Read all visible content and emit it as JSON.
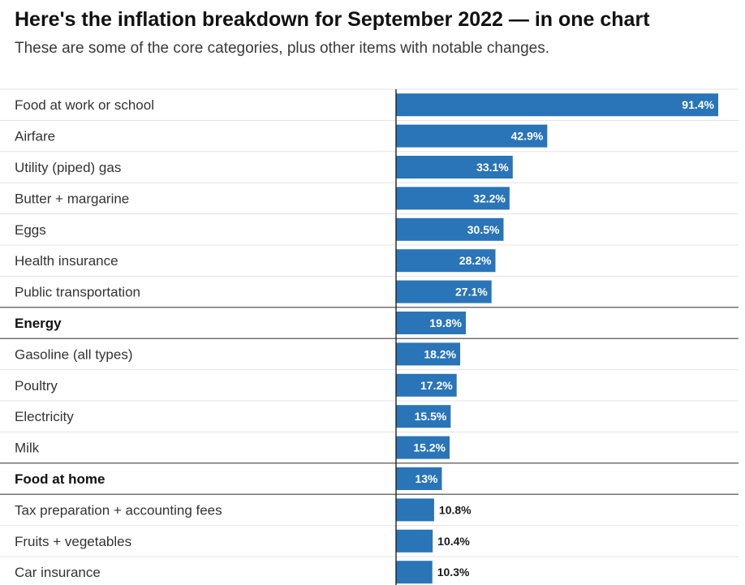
{
  "header": {
    "title": "Here's the inflation breakdown for September 2022 — in one chart",
    "subtitle": "These are some of the core categories, plus other items with notable changes."
  },
  "colors": {
    "bar": "#2a74b8",
    "value_inside": "#ffffff",
    "value_outside": "#1a1a1a",
    "divider_light": "#e3e3e3",
    "divider_strong": "#444444",
    "axis_line": "#222222"
  },
  "chart_data": {
    "type": "bar",
    "orientation": "horizontal",
    "categories": [
      "Food at work or school",
      "Airfare",
      "Utility (piped) gas",
      "Butter + margarine",
      "Eggs",
      "Health insurance",
      "Public transportation",
      "Energy",
      "Gasoline (all types)",
      "Poultry",
      "Electricity",
      "Milk",
      "Food at home",
      "Tax preparation + accounting fees",
      "Fruits + vegetables",
      "Car insurance"
    ],
    "values": [
      91.4,
      42.9,
      33.1,
      32.2,
      30.5,
      28.2,
      27.1,
      19.8,
      18.2,
      17.2,
      15.5,
      15.2,
      13,
      10.8,
      10.4,
      10.3
    ],
    "value_labels": [
      "91.4%",
      "42.9%",
      "33.1%",
      "32.2%",
      "30.5%",
      "28.2%",
      "27.1%",
      "19.8%",
      "18.2%",
      "17.2%",
      "15.5%",
      "15.2%",
      "13%",
      "10.8%",
      "10.4%",
      "10.3%"
    ],
    "bold_categories": [
      "Energy",
      "Food at home"
    ],
    "xlim": [
      0,
      91.4
    ],
    "grid": false
  }
}
